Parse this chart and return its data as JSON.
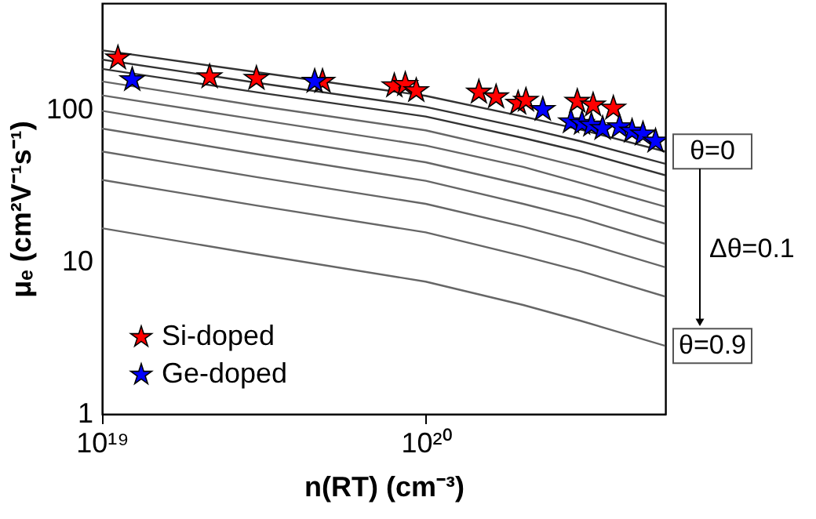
{
  "chart_data": {
    "type": "line",
    "xlabel": "n(RT) (cm⁻³)",
    "ylabel": "μₑ (cm²V⁻¹s⁻¹)",
    "log": "xy",
    "grid": false,
    "legend": "bottom left",
    "marker": "none",
    "line_style": "solid",
    "xlim": [
      1e+19,
      5.5e+20
    ],
    "xticks": [
      {
        "value": 1e+19,
        "label": "10¹⁹"
      },
      {
        "value": 1e+20,
        "label": "10²⁰"
      }
    ],
    "ylim": [
      1,
      500
    ],
    "yticks": [
      1,
      10,
      100
    ],
    "x": [
      1e+19,
      3e+19,
      1e+20,
      2e+20,
      3e+20,
      5.5e+20
    ],
    "series": [
      {
        "color": "#333333",
        "values": [
          245,
          176,
          123,
          90,
          74,
          53
        ]
      },
      {
        "color": "#333333",
        "values": [
          213,
          150,
          104,
          76,
          62,
          44
        ]
      },
      {
        "color": "#333333",
        "values": [
          185,
          130,
          90,
          65,
          53,
          37
        ]
      },
      {
        "color": "#666666",
        "values": [
          153,
          106,
          73,
          52,
          42,
          29
        ]
      },
      {
        "color": "#666666",
        "values": [
          124,
          86,
          58,
          42,
          33,
          23
        ]
      },
      {
        "color": "#666666",
        "values": [
          98,
          67,
          45,
          32,
          26,
          17.8
        ]
      },
      {
        "color": "#666666",
        "values": [
          75,
          51,
          34,
          24,
          19.3,
          13.1
        ]
      },
      {
        "color": "#666666",
        "values": [
          53,
          36,
          24,
          17,
          13.5,
          9.2
        ]
      },
      {
        "color": "#666666",
        "values": [
          34.5,
          23.4,
          15.6,
          10.9,
          8.7,
          5.9
        ]
      },
      {
        "color": "#666666",
        "values": [
          16.6,
          11.2,
          7.4,
          5.2,
          4.1,
          2.8
        ]
      },
      {
        "type": "scatter",
        "name": "Si-doped",
        "color": "#ff0000",
        "marker": "star",
        "x": [
          1.12e+19,
          2.15e+19,
          3e+19,
          4.8e+19,
          8e+19,
          8.65e+19,
          9.35e+19,
          1.46e+20,
          1.65e+20,
          1.93e+20,
          2.04e+20,
          2.94e+20,
          3.29e+20,
          3.8e+20
        ],
        "values": [
          218,
          164,
          160,
          153,
          143,
          146,
          133,
          130,
          121,
          110,
          115,
          113,
          107,
          102
        ]
      },
      {
        "type": "scatter",
        "name": "Ge-doped",
        "color": "#0000ff",
        "marker": "star",
        "x": [
          1.24e+19,
          4.54e+19,
          2.3e+20,
          2.81e+20,
          3.04e+20,
          3.25e+20,
          3.52e+20,
          3.97e+20,
          4.34e+20,
          4.69e+20,
          5.13e+20
        ],
        "values": [
          157,
          153,
          100,
          83,
          81,
          79,
          75,
          77,
          72,
          69,
          62
        ]
      }
    ],
    "annotations": [
      "θ=0",
      "Δθ=0.1",
      "θ=0.9"
    ]
  }
}
